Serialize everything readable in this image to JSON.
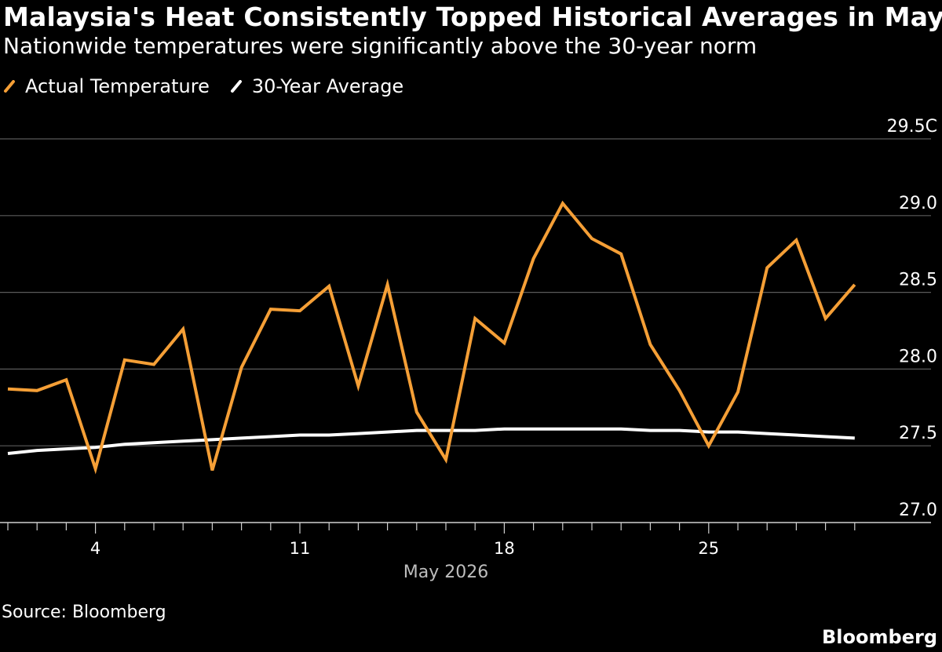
{
  "title": "Malaysia's Heat Consistently Topped Historical Averages in May",
  "subtitle": "Nationwide temperatures were significantly above the 30-year norm",
  "source": "Source: Bloomberg",
  "brand": "Bloomberg",
  "colors": {
    "background": "#000000",
    "actual": "#f59f36",
    "average": "#ffffff",
    "grid": "#5a5a5a",
    "axis_text": "#ffffff",
    "month_text": "#bdbdbd"
  },
  "chart_data": {
    "type": "line",
    "x_label": "May 2026",
    "x_domain": [
      1,
      31
    ],
    "x_ticks": [
      4,
      11,
      18,
      25
    ],
    "x_tick_labels": [
      "4",
      "11",
      "18",
      "25"
    ],
    "ylim": [
      27.0,
      29.5
    ],
    "y_ticks": [
      27.0,
      27.5,
      28.0,
      28.5,
      29.0,
      29.5
    ],
    "y_tick_labels": [
      "27.0",
      "27.5",
      "28.0",
      "28.5",
      "29.0",
      "29.5C"
    ],
    "grid": "horizontal",
    "legend_position": "top-left",
    "series": [
      {
        "name": "Actual Temperature",
        "color": "#f59f36",
        "x": [
          1,
          2,
          3,
          4,
          5,
          6,
          7,
          8,
          9,
          10,
          11,
          12,
          13,
          14,
          15,
          16,
          17,
          18,
          19,
          20,
          21,
          22,
          23,
          24,
          25,
          26,
          27,
          28,
          29,
          30
        ],
        "values": [
          27.87,
          27.86,
          27.93,
          27.35,
          28.06,
          28.03,
          28.26,
          27.34,
          28.01,
          28.39,
          28.38,
          28.54,
          27.89,
          28.55,
          27.72,
          27.41,
          28.33,
          28.17,
          28.72,
          29.08,
          28.85,
          28.75,
          28.16,
          27.86,
          27.5,
          27.85,
          28.66,
          28.84,
          28.33,
          28.55
        ]
      },
      {
        "name": "30-Year Average",
        "color": "#ffffff",
        "x": [
          1,
          2,
          3,
          4,
          5,
          6,
          7,
          8,
          9,
          10,
          11,
          12,
          13,
          14,
          15,
          16,
          17,
          18,
          19,
          20,
          21,
          22,
          23,
          24,
          25,
          26,
          27,
          28,
          29,
          30
        ],
        "values": [
          27.45,
          27.47,
          27.48,
          27.49,
          27.51,
          27.52,
          27.53,
          27.54,
          27.55,
          27.56,
          27.57,
          27.57,
          27.58,
          27.59,
          27.6,
          27.6,
          27.6,
          27.61,
          27.61,
          27.61,
          27.61,
          27.61,
          27.6,
          27.6,
          27.59,
          27.59,
          27.58,
          27.57,
          27.56,
          27.55
        ]
      }
    ]
  }
}
